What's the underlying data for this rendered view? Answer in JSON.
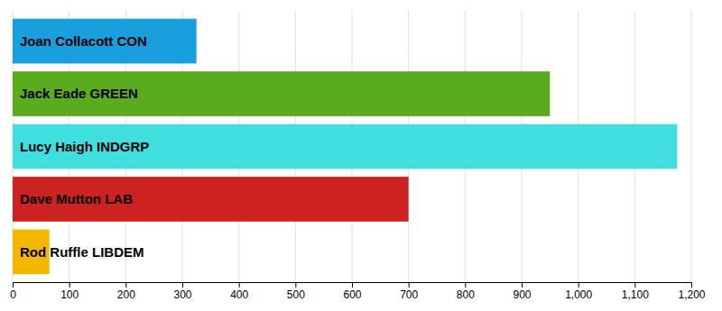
{
  "chart_data": {
    "type": "bar",
    "orientation": "horizontal",
    "categories": [
      "Joan Collacott CON",
      "Jack Eade GREEN",
      "Lucy Haigh INDGRP",
      "Dave Mutton LAB",
      "Rod Ruffle LIBDEM"
    ],
    "values": [
      325,
      950,
      1175,
      700,
      65
    ],
    "colors": [
      "#1a9fde",
      "#5aac1e",
      "#40dede",
      "#cc2222",
      "#f5b800"
    ],
    "xlim": [
      0,
      1200
    ],
    "xticks": [
      0,
      100,
      200,
      300,
      400,
      500,
      600,
      700,
      800,
      900,
      {
        "value": 1000,
        "label": "1,000"
      },
      {
        "value": 1100,
        "label": "1,100"
      },
      {
        "value": 1200,
        "label": "1,200"
      }
    ],
    "grid": true,
    "tick_labels": "x"
  }
}
